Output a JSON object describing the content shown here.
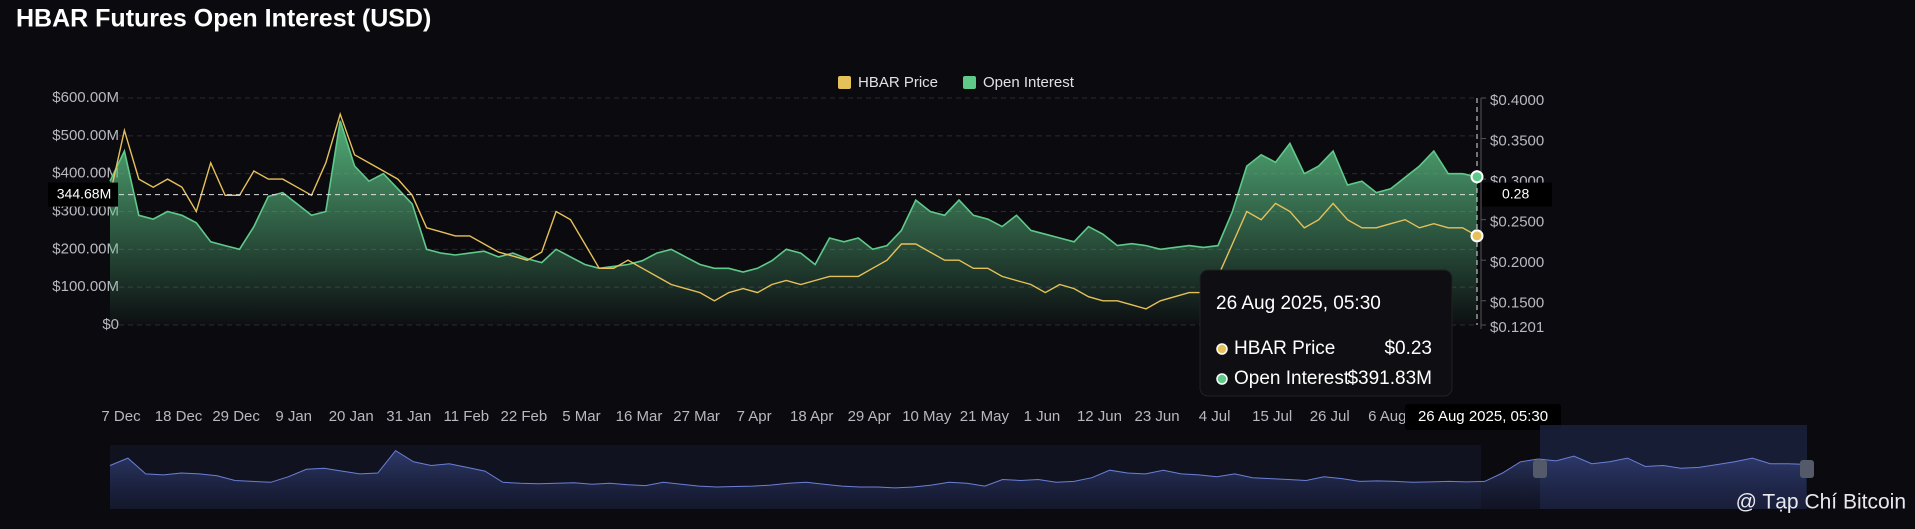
{
  "chart_data": {
    "type": "line",
    "title": "HBAR Futures Open Interest (USD)",
    "categories": [
      "7 Dec",
      null,
      null,
      null,
      "18 Dec",
      null,
      null,
      null,
      "29 Dec",
      null,
      null,
      null,
      "9 Jan",
      null,
      null,
      null,
      "20 Jan",
      null,
      null,
      null,
      "31 Jan",
      null,
      null,
      null,
      "11 Feb",
      null,
      null,
      null,
      "22 Feb",
      null,
      null,
      null,
      "5 Mar",
      null,
      null,
      null,
      "16 Mar",
      null,
      null,
      null,
      "27 Mar",
      null,
      null,
      null,
      "7 Apr",
      null,
      null,
      null,
      "18 Apr",
      null,
      null,
      null,
      "29 Apr",
      null,
      null,
      null,
      "10 May",
      null,
      null,
      null,
      "21 May",
      null,
      null,
      null,
      "1 Jun",
      null,
      null,
      null,
      "12 Jun",
      null,
      null,
      null,
      "23 Jun",
      null,
      null,
      null,
      "4 Jul",
      null,
      null,
      null,
      "15 Jul",
      null,
      null,
      null,
      "26 Jul",
      null,
      null,
      null,
      "6 Aug",
      null,
      null,
      null,
      null,
      null,
      null,
      "26 Aug 2025, 05:30"
    ],
    "series": [
      {
        "name": "HBAR Price",
        "color": "#e6c15a",
        "axis": "y2",
        "values": [
          0.28,
          0.36,
          0.3,
          0.29,
          0.3,
          0.29,
          0.26,
          0.32,
          0.28,
          0.28,
          0.31,
          0.3,
          0.3,
          0.29,
          0.28,
          0.32,
          0.38,
          0.33,
          0.32,
          0.31,
          0.3,
          0.28,
          0.24,
          0.235,
          0.23,
          0.23,
          0.22,
          0.21,
          0.205,
          0.2,
          0.21,
          0.26,
          0.25,
          0.22,
          0.19,
          0.19,
          0.2,
          0.19,
          0.18,
          0.17,
          0.165,
          0.16,
          0.15,
          0.16,
          0.165,
          0.16,
          0.17,
          0.175,
          0.17,
          0.175,
          0.18,
          0.18,
          0.18,
          0.19,
          0.2,
          0.22,
          0.22,
          0.21,
          0.2,
          0.2,
          0.19,
          0.19,
          0.18,
          0.175,
          0.17,
          0.16,
          0.17,
          0.165,
          0.155,
          0.15,
          0.15,
          0.145,
          0.14,
          0.15,
          0.155,
          0.16,
          0.16,
          0.18,
          0.22,
          0.26,
          0.25,
          0.27,
          0.26,
          0.24,
          0.25,
          0.27,
          0.25,
          0.24,
          0.24,
          0.245,
          0.25,
          0.24,
          0.245,
          0.24,
          0.24,
          0.23
        ]
      },
      {
        "name": "Open Interest",
        "color": "#5fc98a",
        "values": [
          380,
          460,
          290,
          280,
          300,
          290,
          270,
          220,
          210,
          200,
          260,
          340,
          350,
          320,
          290,
          300,
          540,
          420,
          380,
          400,
          360,
          320,
          200,
          190,
          185,
          190,
          195,
          180,
          190,
          175,
          165,
          200,
          180,
          160,
          150,
          155,
          160,
          170,
          190,
          200,
          180,
          160,
          150,
          150,
          140,
          150,
          170,
          200,
          190,
          160,
          230,
          220,
          230,
          200,
          210,
          250,
          330,
          300,
          290,
          330,
          290,
          280,
          260,
          290,
          250,
          240,
          230,
          220,
          260,
          240,
          210,
          215,
          210,
          200,
          205,
          210,
          205,
          210,
          300,
          420,
          450,
          430,
          480,
          400,
          420,
          460,
          370,
          380,
          350,
          360,
          390,
          420,
          460,
          400,
          400,
          391.83
        ]
      }
    ],
    "ylim": [
      0,
      600
    ],
    "yticks": [
      {
        "value": 0,
        "label": "$0"
      },
      {
        "value": 100,
        "label": "$100.00M"
      },
      {
        "value": 200,
        "label": "$200.00M"
      },
      {
        "value": 300,
        "label": "$300.00M"
      },
      {
        "value": 400,
        "label": "$400.00M"
      },
      {
        "value": 500,
        "label": "$500.00M"
      },
      {
        "value": 600,
        "label": "$600.00M"
      }
    ],
    "y2lim": [
      0.1201,
      0.4
    ],
    "y2ticks": [
      {
        "value": 0.1201,
        "label": "$0.1201"
      },
      {
        "value": 0.15,
        "label": "$0.1500"
      },
      {
        "value": 0.2,
        "label": "$0.2000"
      },
      {
        "value": 0.25,
        "label": "$0.2500"
      },
      {
        "value": 0.3,
        "label": "$0.3000"
      },
      {
        "value": 0.35,
        "label": "$0.3500"
      },
      {
        "value": 0.4,
        "label": "$0.4000"
      }
    ],
    "grid": true,
    "legend": "top",
    "crosshair": {
      "value": 344.68,
      "label": "344.68M",
      "y2_label": "0.28"
    }
  },
  "tooltip": {
    "title": "26 Aug 2025, 05:30",
    "items": [
      {
        "name": "HBAR Price",
        "value": "$0.23"
      },
      {
        "name": "Open Interest",
        "value": "$391.83M"
      }
    ]
  },
  "watermark": "@ Tạp Chí Bitcoin"
}
